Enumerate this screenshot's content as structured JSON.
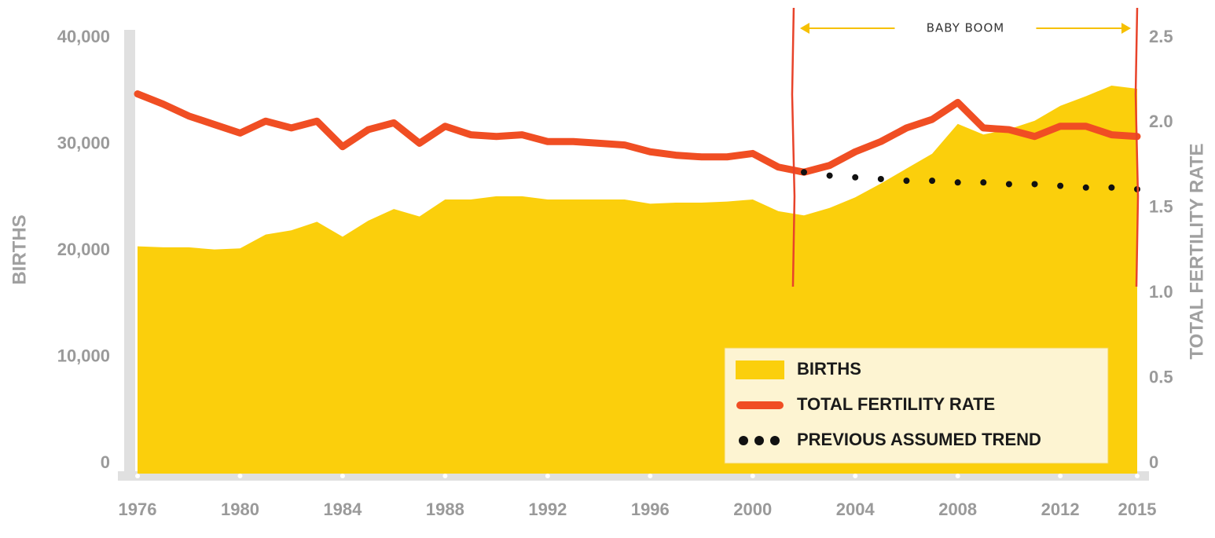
{
  "chart_data": {
    "type": "area_line",
    "x": [
      1976,
      1977,
      1978,
      1979,
      1980,
      1981,
      1982,
      1983,
      1984,
      1985,
      1986,
      1987,
      1988,
      1989,
      1990,
      1991,
      1992,
      1993,
      1994,
      1995,
      1996,
      1997,
      1998,
      1999,
      2000,
      2001,
      2002,
      2003,
      2004,
      2005,
      2006,
      2007,
      2008,
      2009,
      2010,
      2011,
      2012,
      2013,
      2014,
      2015
    ],
    "xlim": [
      1976,
      2015
    ],
    "xticks": [
      1976,
      1980,
      1984,
      1988,
      1992,
      1996,
      2000,
      2004,
      2008,
      2012,
      2015
    ],
    "ylabel": "BIRTHS",
    "y2label": "TOTAL FERTILITY RATE",
    "ylim": [
      0,
      40000
    ],
    "yticks": [
      0,
      {
        "value": 10000,
        "label": "10,000"
      },
      {
        "value": 20000,
        "label": "20,000"
      },
      {
        "value": 30000,
        "label": "30,000"
      },
      {
        "value": 40000,
        "label": "40,000"
      }
    ],
    "y2lim": [
      0,
      2.5
    ],
    "y2ticks": [
      0,
      0.5,
      {
        "value": 1,
        "label": "1.0"
      },
      1.5,
      {
        "value": 2,
        "label": "2.0"
      },
      2.5
    ],
    "legend": "lower right",
    "series": [
      {
        "name": "BIRTHS",
        "kind": "area",
        "color": "#fbcf0c",
        "values": [
          20400,
          20300,
          20300,
          20100,
          20200,
          21500,
          21900,
          22700,
          21300,
          22800,
          23900,
          23200,
          24800,
          24800,
          25100,
          25100,
          24800,
          24800,
          24800,
          24800,
          24400,
          24500,
          24500,
          24600,
          24800,
          23700,
          23300,
          24000,
          25000,
          26300,
          27700,
          29100,
          31900,
          30900,
          31400,
          32200,
          33600,
          34500,
          35500,
          35200
        ]
      },
      {
        "name": "TOTAL FERTILITY RATE",
        "kind": "line",
        "axis": "y2",
        "color": "#f04e23",
        "values": [
          2.17,
          2.11,
          2.04,
          1.99,
          1.94,
          2.01,
          1.97,
          2.01,
          1.86,
          1.96,
          2.0,
          1.88,
          1.98,
          1.93,
          1.92,
          1.93,
          1.89,
          1.89,
          1.88,
          1.87,
          1.83,
          1.81,
          1.8,
          1.8,
          1.82,
          1.74,
          1.71,
          1.75,
          1.83,
          1.89,
          1.97,
          2.02,
          2.12,
          1.97,
          1.96,
          1.92,
          1.98,
          1.98,
          1.93,
          1.92
        ]
      },
      {
        "name": "PREVIOUS ASSUMED TREND",
        "kind": "dots",
        "axis": "y2",
        "color": "#111111",
        "values": [
          null,
          null,
          null,
          null,
          null,
          null,
          null,
          null,
          null,
          null,
          null,
          null,
          null,
          null,
          null,
          null,
          null,
          null,
          null,
          null,
          null,
          null,
          null,
          null,
          null,
          null,
          1.71,
          1.69,
          1.68,
          1.67,
          1.66,
          1.66,
          1.65,
          1.65,
          1.64,
          1.64,
          1.63,
          1.62,
          1.62,
          1.61
        ]
      }
    ],
    "annotation": {
      "text": "BABY BOOM",
      "x_start": 2001.6,
      "x_end": 2015,
      "color": "#e8432a"
    }
  }
}
